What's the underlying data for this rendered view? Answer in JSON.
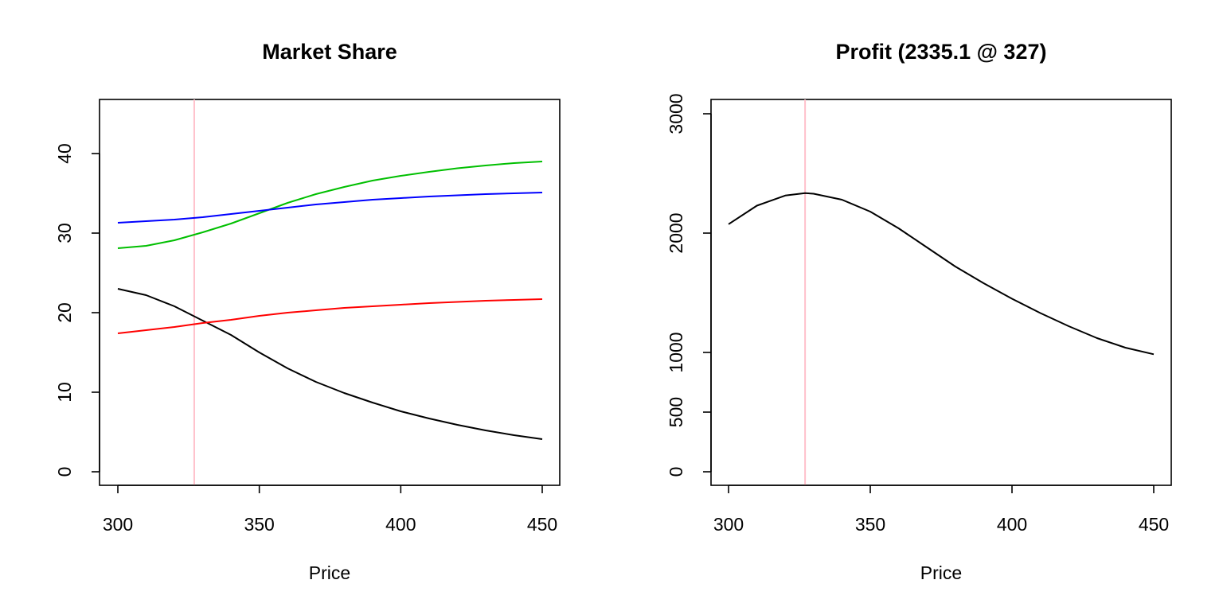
{
  "chart_data": [
    {
      "type": "line",
      "title": "Market Share",
      "xlabel": "Price",
      "ylabel": "",
      "xlim": [
        300,
        450
      ],
      "ylim": [
        0,
        46
      ],
      "xticks": [
        300,
        350,
        400,
        450
      ],
      "yticks": [
        0,
        10,
        20,
        30,
        40
      ],
      "x": [
        300,
        310,
        320,
        330,
        340,
        350,
        360,
        370,
        380,
        390,
        400,
        410,
        420,
        430,
        440,
        450
      ],
      "series": [
        {
          "color": "#000000",
          "values": [
            23.0,
            22.2,
            20.8,
            19.0,
            17.2,
            15.0,
            13.0,
            11.3,
            9.9,
            8.7,
            7.6,
            6.7,
            5.9,
            5.2,
            4.6,
            4.1
          ]
        },
        {
          "color": "#ff0000",
          "values": [
            17.4,
            17.8,
            18.2,
            18.7,
            19.1,
            19.6,
            20.0,
            20.3,
            20.6,
            20.8,
            21.0,
            21.2,
            21.35,
            21.5,
            21.6,
            21.7
          ]
        },
        {
          "color": "#00bf00",
          "values": [
            28.1,
            28.4,
            29.1,
            30.1,
            31.2,
            32.5,
            33.8,
            34.9,
            35.8,
            36.6,
            37.2,
            37.7,
            38.15,
            38.5,
            38.8,
            39.0
          ]
        },
        {
          "color": "#0000ff",
          "values": [
            31.3,
            31.5,
            31.7,
            32.0,
            32.4,
            32.8,
            33.2,
            33.6,
            33.9,
            34.2,
            34.4,
            34.6,
            34.75,
            34.9,
            35.0,
            35.1
          ]
        }
      ],
      "vline": {
        "x": 327,
        "color": "#ffc0cb"
      }
    },
    {
      "type": "line",
      "title": "Profit (2335.1 @ 327)",
      "xlabel": "Price",
      "ylabel": "",
      "xlim": [
        300,
        450
      ],
      "ylim": [
        0,
        3000
      ],
      "xticks": [
        300,
        350,
        400,
        450
      ],
      "yticks": [
        0,
        500,
        1000,
        2000,
        3000
      ],
      "x": [
        300,
        310,
        320,
        327,
        330,
        340,
        350,
        360,
        370,
        380,
        390,
        400,
        410,
        420,
        430,
        440,
        450
      ],
      "series": [
        {
          "color": "#000000",
          "values": [
            2075,
            2230,
            2315,
            2335.1,
            2330,
            2280,
            2180,
            2040,
            1880,
            1720,
            1580,
            1450,
            1330,
            1220,
            1120,
            1040,
            985
          ]
        }
      ],
      "vline": {
        "x": 327,
        "color": "#ffc0cb"
      }
    }
  ]
}
